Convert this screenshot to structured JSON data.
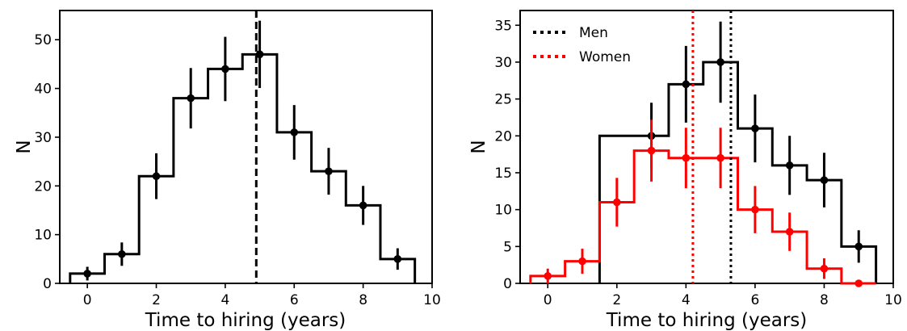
{
  "chart_data": [
    {
      "type": "histogram",
      "xlabel": "Time to hiring (years)",
      "ylabel": "N",
      "xlim": [
        -0.8,
        10
      ],
      "ylim": [
        0,
        56
      ],
      "xticks": [
        0,
        2,
        4,
        6,
        8,
        10
      ],
      "yticks": [
        0,
        10,
        20,
        30,
        40,
        50
      ],
      "grid": false,
      "series": [
        {
          "color": "#000000",
          "x": [
            0,
            1,
            2,
            3,
            4,
            5,
            6,
            7,
            8,
            9
          ],
          "values": [
            2,
            6,
            22,
            38,
            44,
            47,
            31,
            23,
            16,
            5
          ],
          "errors": [
            1.4,
            2.4,
            4.7,
            6.2,
            6.6,
            6.9,
            5.6,
            4.8,
            4.0,
            2.2
          ]
        }
      ],
      "vlines": [
        {
          "x": 4.9,
          "style": "dashed",
          "color": "#000000"
        }
      ]
    },
    {
      "type": "histogram",
      "xlabel": "Time to hiring (years)",
      "ylabel": "N",
      "xlim": [
        -0.8,
        10
      ],
      "ylim": [
        0,
        37
      ],
      "xticks": [
        0,
        2,
        4,
        6,
        8,
        10
      ],
      "yticks": [
        0,
        5,
        10,
        15,
        20,
        25,
        30,
        35
      ],
      "grid": false,
      "legend_position": "top-left",
      "series": [
        {
          "name": "Men",
          "color": "#000000",
          "x": [
            2,
            3,
            4,
            5,
            6,
            7,
            8,
            9
          ],
          "values": [
            20,
            20,
            27,
            30,
            21,
            16,
            14,
            5
          ],
          "errors": [
            4.5,
            4.5,
            5.2,
            5.5,
            4.6,
            4.0,
            3.7,
            2.2
          ],
          "step_x": [
            2,
            3,
            4,
            5,
            6,
            7,
            8,
            9
          ],
          "step_values": [
            20,
            20,
            27,
            30,
            21,
            16,
            14,
            5
          ],
          "marker_x": [
            3,
            4,
            5,
            6,
            7,
            8,
            9
          ],
          "marker_values": [
            20,
            27,
            30,
            21,
            16,
            14,
            5
          ]
        },
        {
          "name": "Women",
          "color": "#ff0000",
          "x": [
            0,
            1,
            2,
            3,
            4,
            5,
            6,
            7,
            8,
            9
          ],
          "values": [
            1,
            3,
            11,
            18,
            17,
            17,
            10,
            7,
            2,
            0
          ],
          "errors": [
            1.0,
            1.7,
            3.3,
            4.2,
            4.1,
            4.1,
            3.2,
            2.6,
            1.4,
            0
          ]
        }
      ],
      "vlines": [
        {
          "x": 5.3,
          "style": "dotted",
          "color": "#000000"
        },
        {
          "x": 4.2,
          "style": "dotted",
          "color": "#ff0000"
        }
      ]
    }
  ]
}
